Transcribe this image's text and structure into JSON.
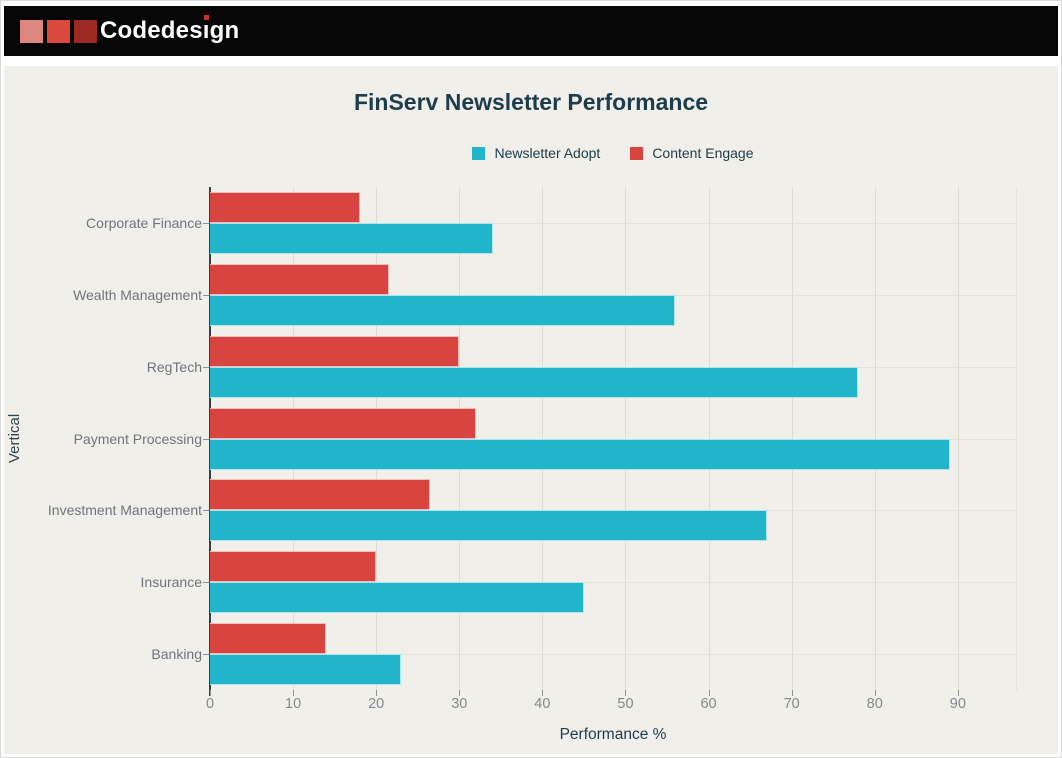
{
  "header": {
    "logo_text": "Codedesign",
    "logo_part1": "Codedes",
    "logo_i": "ı",
    "logo_part3": "gn",
    "square_colors": [
      "#dd867e",
      "#da4a3c",
      "#9c2a22"
    ],
    "bar_color": "#060606",
    "i_dot_color": "#c0322a"
  },
  "chart_data": {
    "type": "bar",
    "orientation": "horizontal",
    "title": "FinServ Newsletter Performance",
    "xlabel": "Performance %",
    "ylabel": "Vertical",
    "categories": [
      "Corporate Finance",
      "Wealth Management",
      "RegTech",
      "Payment Processing",
      "Investment Management",
      "Insurance",
      "Banking"
    ],
    "series": [
      {
        "name": "Newsletter Adopt",
        "color": "#22b5c9",
        "values": [
          34,
          56,
          78,
          89,
          67,
          45,
          23
        ]
      },
      {
        "name": "Content Engage",
        "color": "#d84540",
        "values": [
          18,
          21.5,
          30,
          32,
          26.5,
          20,
          14
        ]
      }
    ],
    "x_ticks": [
      0,
      10,
      20,
      30,
      40,
      50,
      60,
      70,
      80,
      90
    ],
    "xlim": [
      0,
      97
    ],
    "grid": true,
    "legend_position": "top-center",
    "background_color": "#f0efe9"
  }
}
